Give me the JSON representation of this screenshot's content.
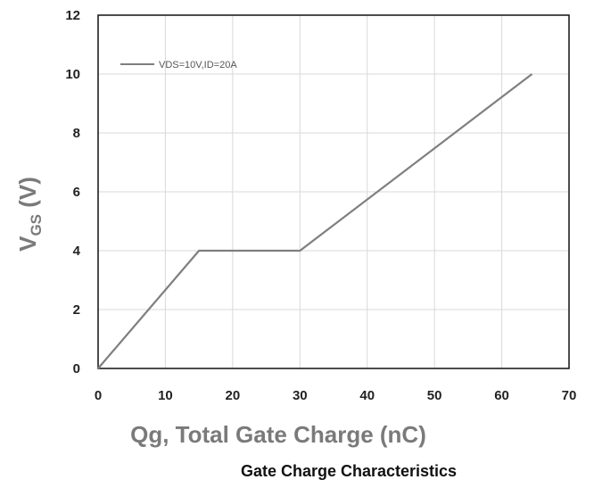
{
  "chart_data": {
    "type": "line",
    "title": "Gate Charge Characteristics",
    "xlabel": "Qg, Total Gate Charge (nC)",
    "ylabel_main": "V",
    "ylabel_sub": "GS",
    "ylabel_unit": " (V)",
    "xlim": [
      0,
      70
    ],
    "ylim": [
      0,
      12
    ],
    "xticks": [
      0,
      10,
      20,
      30,
      40,
      50,
      60,
      70
    ],
    "yticks": [
      0,
      2,
      4,
      6,
      8,
      10,
      12
    ],
    "grid": true,
    "legend_position": "top-left",
    "series": [
      {
        "name": "VDS=10V,ID=20A",
        "color": "#7f7f7f",
        "points": [
          [
            0,
            0
          ],
          [
            15,
            4
          ],
          [
            30,
            4
          ],
          [
            64.5,
            10
          ]
        ]
      }
    ]
  },
  "colors": {
    "line": "#7f7f7f",
    "grid": "#d9d9d9",
    "frame": "#111111"
  }
}
